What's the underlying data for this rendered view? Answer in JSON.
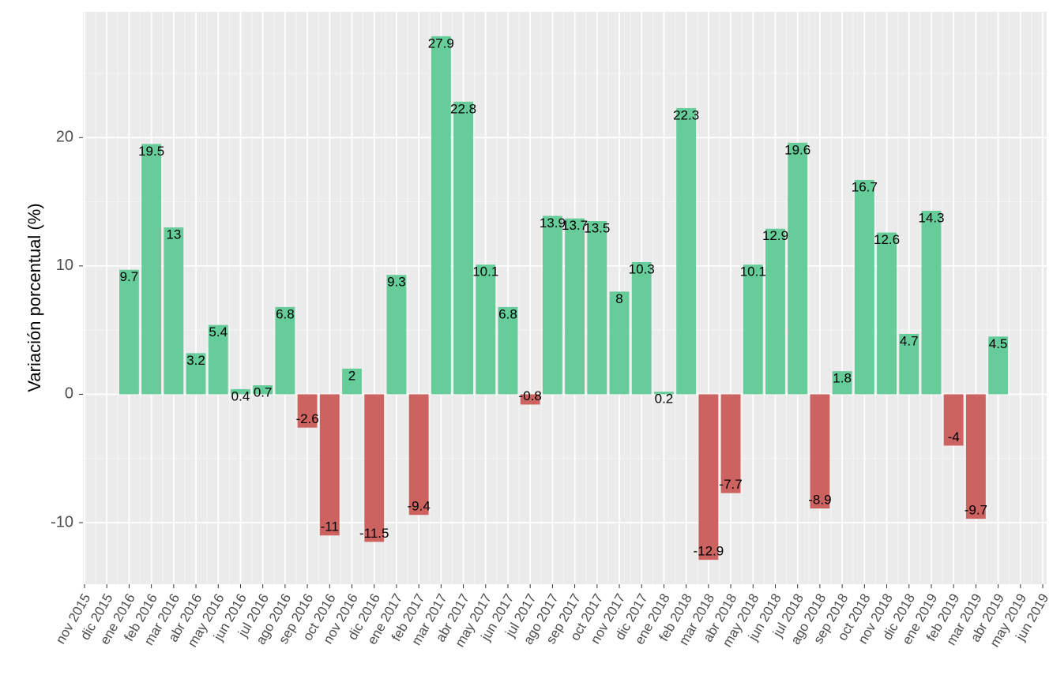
{
  "chart_data": {
    "type": "bar",
    "y_label": "Variación porcentual (%)",
    "categories": [
      "nov 2015",
      "dic 2015",
      "ene 2016",
      "feb 2016",
      "mar 2016",
      "abr 2016",
      "may 2016",
      "jun 2016",
      "jul 2016",
      "ago 2016",
      "sep 2016",
      "oct 2016",
      "nov 2016",
      "dic 2016",
      "ene 2017",
      "feb 2017",
      "mar 2017",
      "abr 2017",
      "may 2017",
      "jun 2017",
      "jul 2017",
      "ago 2017",
      "sep 2017",
      "oct 2017",
      "nov 2017",
      "dic 2017",
      "ene 2018",
      "feb 2018",
      "mar 2018",
      "abr 2018",
      "may 2018",
      "jun 2018",
      "jul 2018",
      "ago 2018",
      "sep 2018",
      "oct 2018",
      "nov 2018",
      "dic 2018",
      "ene 2019",
      "feb 2019",
      "mar 2019",
      "abr 2019",
      "may 2019",
      "jun 2019"
    ],
    "values": [
      null,
      null,
      9.7,
      19.5,
      13,
      3.2,
      5.4,
      0.4,
      0.7,
      6.8,
      -2.6,
      -11,
      2,
      -11.5,
      9.3,
      -9.4,
      27.9,
      22.8,
      10.1,
      6.8,
      -0.8,
      13.9,
      13.7,
      13.5,
      8,
      10.3,
      0.2,
      22.3,
      -12.9,
      -7.7,
      10.1,
      12.9,
      19.6,
      -8.9,
      1.8,
      16.7,
      12.6,
      4.7,
      14.3,
      -4,
      -9.7,
      4.5,
      null,
      null
    ],
    "positive_color": "#66cc99",
    "negative_color": "#cd6360",
    "ylim": [
      -14.8,
      29.8
    ],
    "yticks": [
      -10,
      0,
      10,
      20
    ],
    "grid": true
  }
}
